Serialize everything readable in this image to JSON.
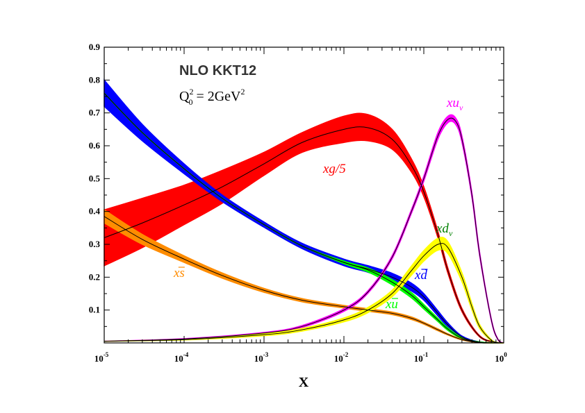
{
  "chart_data": {
    "type": "line",
    "title": "NLO KKT12",
    "subtitle": {
      "q": "Q",
      "sup": "2",
      "sub": "0",
      "rest": " = 2GeV",
      "rest_sup": "2"
    },
    "xlabel": "X",
    "ylabel": "",
    "xscale": "log",
    "xlim": [
      1e-05,
      1
    ],
    "ylim": [
      0,
      0.9
    ],
    "x_ticks": [
      {
        "base": "10",
        "exp": "-5",
        "value": 1e-05
      },
      {
        "base": "10",
        "exp": "-4",
        "value": 0.0001
      },
      {
        "base": "10",
        "exp": "-3",
        "value": 0.001
      },
      {
        "base": "10",
        "exp": "-2",
        "value": 0.01
      },
      {
        "base": "10",
        "exp": "-1",
        "value": 0.1
      },
      {
        "base": "10",
        "exp": "0",
        "value": 1
      }
    ],
    "y_ticks": [
      "0.1",
      "0.2",
      "0.3",
      "0.4",
      "0.5",
      "0.6",
      "0.7",
      "0.8",
      "0.9"
    ],
    "grid": false,
    "series": [
      {
        "name": "xg/5",
        "label_main": "xg/5",
        "label_sub": "",
        "label_bar": false,
        "color": "#ff0000",
        "x": [
          1e-05,
          3e-05,
          0.0001,
          0.0003,
          0.001,
          0.003,
          0.01,
          0.02,
          0.04,
          0.07,
          0.1,
          0.15,
          0.2,
          0.3,
          0.5,
          0.8,
          1.0
        ],
        "values": [
          0.32,
          0.365,
          0.42,
          0.475,
          0.545,
          0.61,
          0.65,
          0.655,
          0.62,
          0.54,
          0.46,
          0.33,
          0.22,
          0.1,
          0.02,
          0.002,
          0.0
        ],
        "band": [
          0.085,
          0.075,
          0.06,
          0.05,
          0.035,
          0.03,
          0.04,
          0.04,
          0.03,
          0.02,
          0.015,
          0.01,
          0.008,
          0.005,
          0.002,
          0.0,
          0.0
        ]
      },
      {
        "name": "xd̄",
        "label_main": "xd",
        "label_sub": "",
        "label_bar": true,
        "color": "#0000ff",
        "x": [
          1e-05,
          3e-05,
          0.0001,
          0.0003,
          0.001,
          0.003,
          0.01,
          0.02,
          0.04,
          0.07,
          0.1,
          0.15,
          0.2,
          0.3,
          0.5,
          1.0
        ],
        "values": [
          0.76,
          0.64,
          0.53,
          0.44,
          0.36,
          0.295,
          0.245,
          0.225,
          0.2,
          0.17,
          0.14,
          0.09,
          0.055,
          0.018,
          0.002,
          0.0
        ],
        "band": [
          0.04,
          0.025,
          0.015,
          0.01,
          0.008,
          0.008,
          0.01,
          0.01,
          0.012,
          0.012,
          0.01,
          0.008,
          0.006,
          0.003,
          0.001,
          0.0
        ]
      },
      {
        "name": "xū",
        "label_main": "xu",
        "label_sub": "",
        "label_bar": true,
        "color": "#00ff00",
        "x": [
          1e-05,
          3e-05,
          0.0001,
          0.0003,
          0.001,
          0.003,
          0.01,
          0.02,
          0.04,
          0.07,
          0.1,
          0.15,
          0.2,
          0.3,
          0.5,
          1.0
        ],
        "values": [
          0.76,
          0.64,
          0.53,
          0.44,
          0.36,
          0.295,
          0.245,
          0.222,
          0.185,
          0.145,
          0.11,
          0.07,
          0.042,
          0.014,
          0.002,
          0.0
        ],
        "band": [
          0.0,
          0.0,
          0.0,
          0.0,
          0.0,
          0.0,
          0.004,
          0.006,
          0.008,
          0.008,
          0.007,
          0.005,
          0.004,
          0.002,
          0.001,
          0.0
        ]
      },
      {
        "name": "xs̄",
        "label_main": "xs",
        "label_sub": "",
        "label_bar": true,
        "color": "#ff8c00",
        "x": [
          1e-05,
          3e-05,
          0.0001,
          0.0003,
          0.001,
          0.003,
          0.01,
          0.02,
          0.04,
          0.07,
          0.1,
          0.15,
          0.2,
          0.3,
          0.5,
          1.0
        ],
        "values": [
          0.385,
          0.315,
          0.255,
          0.205,
          0.16,
          0.13,
          0.11,
          0.1,
          0.09,
          0.075,
          0.06,
          0.04,
          0.026,
          0.01,
          0.001,
          0.0
        ],
        "band": [
          0.02,
          0.015,
          0.01,
          0.008,
          0.006,
          0.005,
          0.004,
          0.004,
          0.004,
          0.004,
          0.003,
          0.003,
          0.002,
          0.001,
          0.0,
          0.0
        ]
      },
      {
        "name": "xu_v",
        "label_main": "xu",
        "label_sub": "v",
        "label_bar": false,
        "color": "#ff00ff",
        "x": [
          1e-05,
          0.0001,
          0.001,
          0.003,
          0.01,
          0.02,
          0.04,
          0.07,
          0.1,
          0.15,
          0.2,
          0.25,
          0.3,
          0.4,
          0.5,
          0.7,
          0.85,
          1.0
        ],
        "values": [
          0.005,
          0.012,
          0.03,
          0.05,
          0.1,
          0.155,
          0.26,
          0.4,
          0.5,
          0.63,
          0.68,
          0.675,
          0.62,
          0.45,
          0.27,
          0.07,
          0.01,
          0.0
        ],
        "band": [
          0.0,
          0.001,
          0.002,
          0.003,
          0.004,
          0.004,
          0.005,
          0.006,
          0.008,
          0.01,
          0.01,
          0.01,
          0.01,
          0.008,
          0.006,
          0.003,
          0.001,
          0.0
        ]
      },
      {
        "name": "xd_v",
        "label_main": "xd",
        "label_sub": "v",
        "label_bar": false,
        "color": "#ffff00",
        "x": [
          1e-05,
          0.0001,
          0.001,
          0.003,
          0.01,
          0.02,
          0.04,
          0.07,
          0.1,
          0.15,
          0.2,
          0.3,
          0.4,
          0.5,
          0.7,
          0.85,
          1.0
        ],
        "values": [
          0.005,
          0.01,
          0.025,
          0.04,
          0.07,
          0.1,
          0.15,
          0.22,
          0.265,
          0.3,
          0.29,
          0.2,
          0.11,
          0.05,
          0.008,
          0.001,
          0.0
        ],
        "band": [
          0.0,
          0.001,
          0.003,
          0.004,
          0.006,
          0.008,
          0.01,
          0.014,
          0.016,
          0.018,
          0.018,
          0.014,
          0.01,
          0.006,
          0.002,
          0.0,
          0.0
        ]
      }
    ]
  }
}
